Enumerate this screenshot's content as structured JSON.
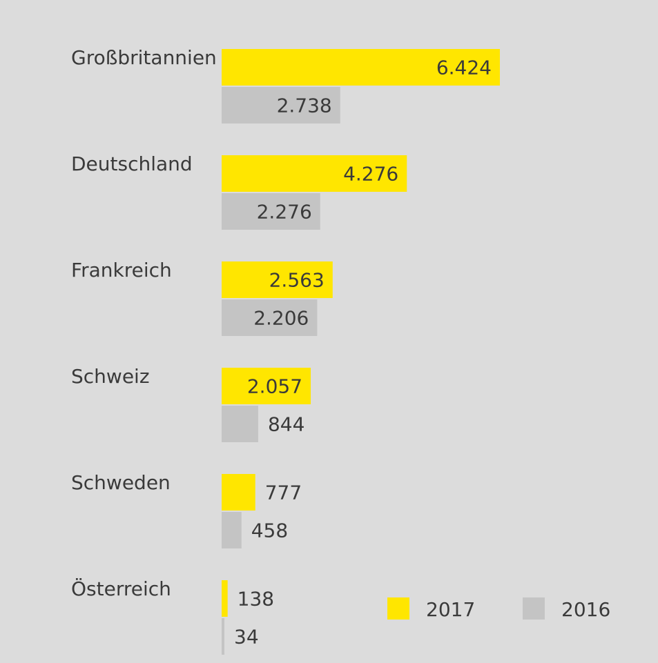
{
  "chart_data": {
    "type": "bar",
    "orientation": "horizontal",
    "categories": [
      "Großbritannien",
      "Deutschland",
      "Frankreich",
      "Schweiz",
      "Schweden",
      "Österreich"
    ],
    "series": [
      {
        "name": "2017",
        "values": [
          6424,
          4276,
          2563,
          2057,
          777,
          138
        ],
        "labels": [
          "6.424",
          "4.276",
          "2.563",
          "2.057",
          "777",
          "138"
        ],
        "color": "#ffe600"
      },
      {
        "name": "2016",
        "values": [
          2738,
          2276,
          2206,
          844,
          458,
          34
        ],
        "labels": [
          "2.738",
          "2.276",
          "2.206",
          "844",
          "458",
          "34"
        ],
        "color": "#c4c4c4"
      }
    ],
    "legend": {
      "placement": "bottom-right"
    },
    "grid": false,
    "colors": {
      "background": "#dcdcdc",
      "text": "#3a3a3a"
    }
  }
}
